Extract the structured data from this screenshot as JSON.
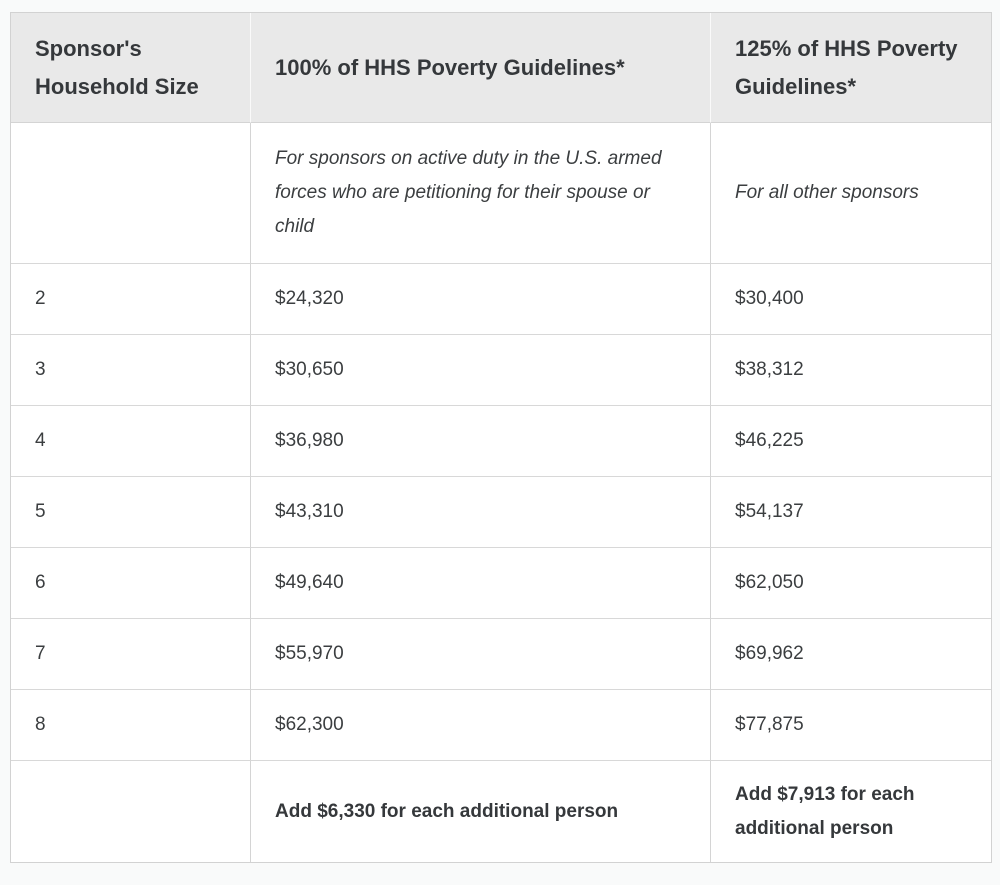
{
  "table": {
    "columns": [
      {
        "header": "Sponsor's Household Size"
      },
      {
        "header": "100% of HHS Poverty Guidelines*",
        "note": "For sponsors on active duty in the U.S. armed forces who are petitioning for their spouse or child"
      },
      {
        "header": "125% of HHS Poverty Guidelines*",
        "note": "For all other sponsors"
      }
    ],
    "rows": [
      {
        "size": "2",
        "g100": "$24,320",
        "g125": "$30,400"
      },
      {
        "size": "3",
        "g100": "$30,650",
        "g125": "$38,312"
      },
      {
        "size": "4",
        "g100": "$36,980",
        "g125": "$46,225"
      },
      {
        "size": "5",
        "g100": "$43,310",
        "g125": "$54,137"
      },
      {
        "size": "6",
        "g100": "$49,640",
        "g125": "$62,050"
      },
      {
        "size": "7",
        "g100": "$55,970",
        "g125": "$69,962"
      },
      {
        "size": "8",
        "g100": "$62,300",
        "g125": "$77,875"
      }
    ],
    "footer": {
      "g100": "Add $6,330 for each additional person",
      "g125": "Add $7,913  for each additional person"
    }
  },
  "colors": {
    "header_bg": "#e9e9e9",
    "border": "#d4d4d4",
    "header_text": "#35383b",
    "body_text": "#3b3e40",
    "page_bg": "#f9fafa",
    "bottom_strip": "#eef0f1"
  }
}
